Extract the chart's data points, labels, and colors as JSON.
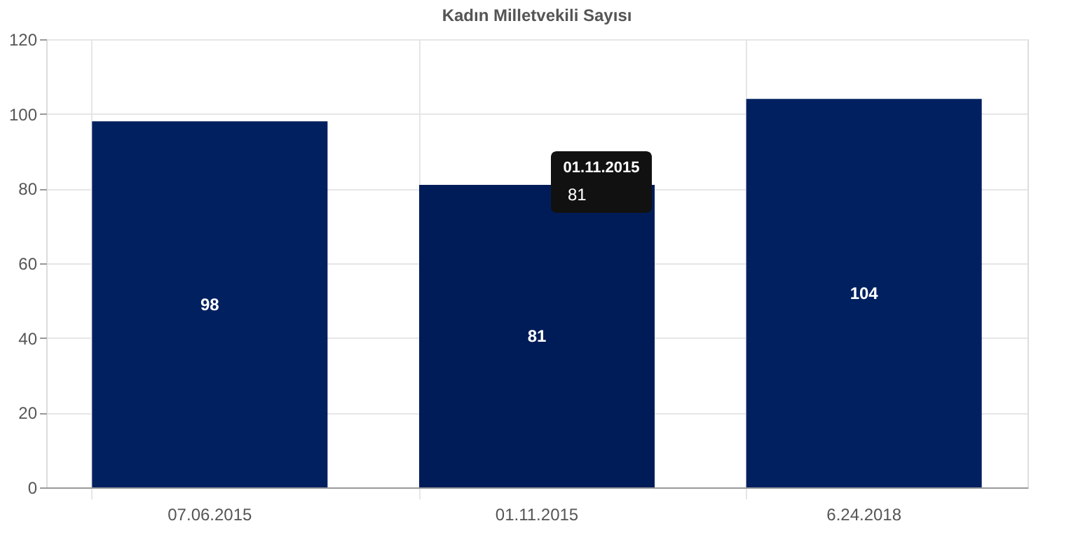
{
  "chart_data": {
    "type": "bar",
    "title": "Kadın Milletvekili Sayısı",
    "categories": [
      "07.06.2015",
      "01.11.2015",
      "6.24.2018"
    ],
    "values": [
      98,
      81,
      104
    ],
    "colors": [
      "#002060",
      "#001c58",
      "#002060"
    ],
    "ylim": [
      0,
      120
    ],
    "yticks": [
      0,
      20,
      40,
      60,
      80,
      100,
      120
    ],
    "grid": true,
    "data_labels": true,
    "annotations": [
      "01.11.2015",
      "81"
    ]
  }
}
